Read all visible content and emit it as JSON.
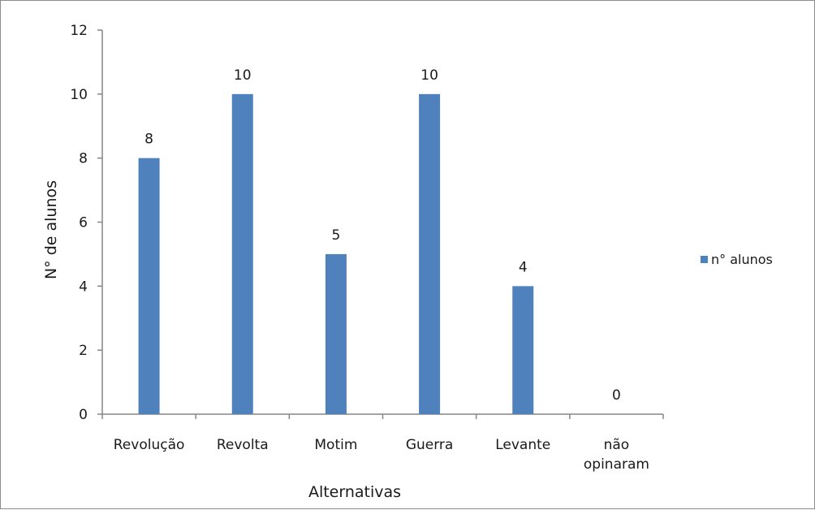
{
  "chart_data": {
    "type": "bar",
    "categories": [
      "Revolução",
      "Revolta",
      "Motim",
      "Guerra",
      "Levante",
      "não opinaram"
    ],
    "series": [
      {
        "name": "n° alunos",
        "values": [
          8,
          10,
          5,
          10,
          4,
          0
        ]
      }
    ],
    "title": "",
    "xlabel": "Alternativas",
    "ylabel": "N° de alunos",
    "ylim": [
      0,
      12
    ],
    "yticks": [
      0,
      2,
      4,
      6,
      8,
      10,
      12
    ],
    "grid": false,
    "legend": "right",
    "data_labels": true,
    "colors": {
      "bar": "#4f81bd",
      "axis": "#868686"
    }
  }
}
